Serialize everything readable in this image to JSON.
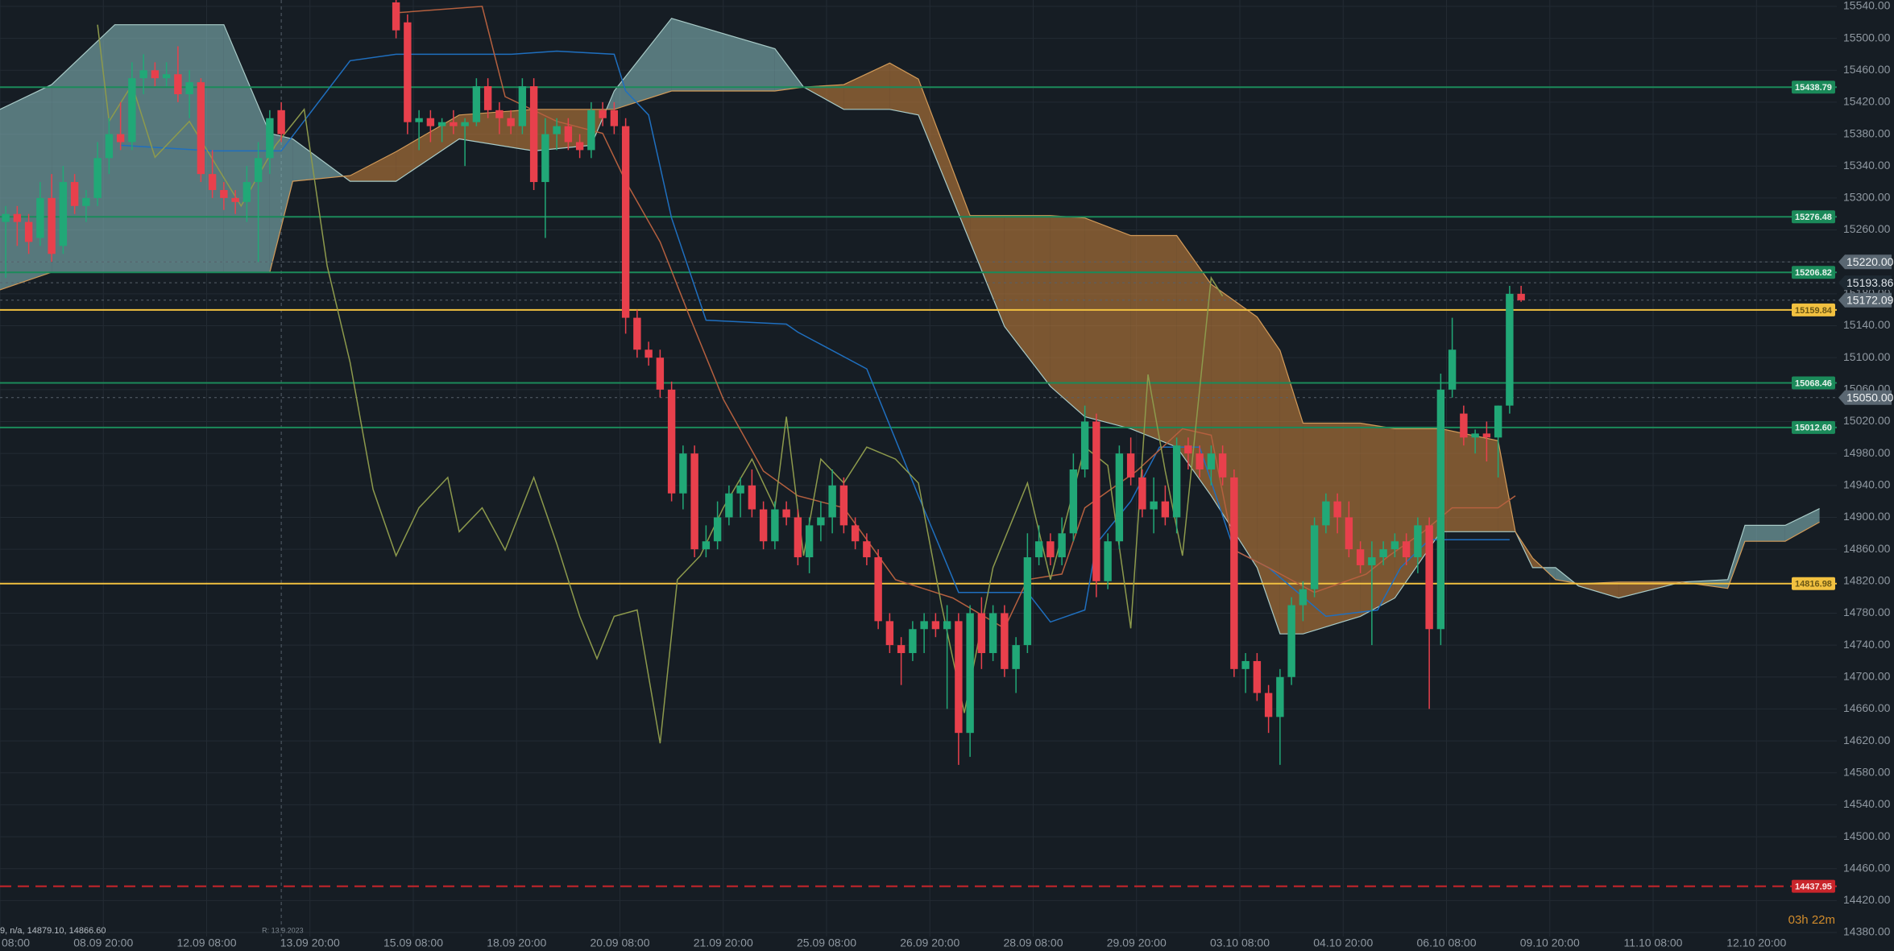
{
  "chart_data": {
    "type": "candlestick",
    "background": "#161d24",
    "grid_color": "#232b33",
    "xlim": [
      -0.5,
      159.5
    ],
    "ylim": [
      14375,
      15548
    ],
    "xticks": [
      {
        "value": -0.5,
        "label": "08:00"
      },
      {
        "value": 8.5,
        "label": "08.09 20:00"
      },
      {
        "value": 17.5,
        "label": "12.09 08:00"
      },
      {
        "value": 26.5,
        "label": "13.09 20:00"
      },
      {
        "value": 35.5,
        "label": "15.09 08:00"
      },
      {
        "value": 44.5,
        "label": "18.09 20:00"
      },
      {
        "value": 53.5,
        "label": "20.09 08:00"
      },
      {
        "value": 62.5,
        "label": "21.09 20:00"
      },
      {
        "value": 71.5,
        "label": "25.09 08:00"
      },
      {
        "value": 80.5,
        "label": "26.09 20:00"
      },
      {
        "value": 89.5,
        "label": "28.09 08:00"
      },
      {
        "value": 98.5,
        "label": "29.09 20:00"
      },
      {
        "value": 107.5,
        "label": "03.10 08:00"
      },
      {
        "value": 116.5,
        "label": "04.10 20:00"
      },
      {
        "value": 125.5,
        "label": "06.10 08:00"
      },
      {
        "value": 134.5,
        "label": "09.10 20:00"
      },
      {
        "value": 143.5,
        "label": "11.10 08:00"
      },
      {
        "value": 152.5,
        "label": "12.10 20:00"
      }
    ],
    "yticks": [
      {
        "value": 14380,
        "label": "14380.00"
      },
      {
        "value": 14420,
        "label": "14420.00"
      },
      {
        "value": 14460,
        "label": "14460.00"
      },
      {
        "value": 14500,
        "label": "14500.00"
      },
      {
        "value": 14540,
        "label": "14540.00"
      },
      {
        "value": 14580,
        "label": "14580.00"
      },
      {
        "value": 14620,
        "label": "14620.00"
      },
      {
        "value": 14660,
        "label": "14660.00"
      },
      {
        "value": 14700,
        "label": "14700.00"
      },
      {
        "value": 14740,
        "label": "14740.00"
      },
      {
        "value": 14780,
        "label": "14780.00"
      },
      {
        "value": 14820,
        "label": "14820.00"
      },
      {
        "value": 14860,
        "label": "14860.00"
      },
      {
        "value": 14900,
        "label": "14900.00"
      },
      {
        "value": 14940,
        "label": "14940.00"
      },
      {
        "value": 14980,
        "label": "14980.00"
      },
      {
        "value": 15020,
        "label": "15020.00"
      },
      {
        "value": 15060,
        "label": "15060.00"
      },
      {
        "value": 15100,
        "label": "15100.00"
      },
      {
        "value": 15140,
        "label": "15140.00"
      },
      {
        "value": 15180,
        "label": "15180.00"
      },
      {
        "value": 15220,
        "label": "15220.00"
      },
      {
        "value": 15260,
        "label": "15260.00"
      },
      {
        "value": 15300,
        "label": "15300.00"
      },
      {
        "value": 15340,
        "label": "15340.00"
      },
      {
        "value": 15380,
        "label": "15380.00"
      },
      {
        "value": 15420,
        "label": "15420.00"
      },
      {
        "value": 15460,
        "label": "15460.00"
      },
      {
        "value": 15500,
        "label": "15500.00"
      },
      {
        "value": 15540,
        "label": "15540.00"
      }
    ],
    "cloud": {
      "up_color": "#7fb0b3",
      "down_color": "#b9793a",
      "span_a_color": "#a9cbc8",
      "span_b_color": "#d29a58",
      "x": [
        -0.5,
        4,
        9.5,
        19,
        23,
        25,
        30,
        34,
        39.5,
        46,
        51,
        53,
        58,
        67,
        69.5,
        73,
        77,
        79.5,
        84,
        87,
        91,
        94,
        98,
        102,
        105,
        109,
        111,
        113,
        118,
        121,
        125,
        130,
        131.5,
        133,
        135,
        137,
        140.5,
        146,
        150,
        151.5,
        155,
        158
      ],
      "span_a": [
        15411,
        15442,
        15517,
        15517,
        15381,
        15374,
        15321,
        15321,
        15374,
        15359,
        15366,
        15434,
        15525,
        15487,
        15439,
        15411,
        15411,
        15404,
        15245,
        15139,
        15064,
        15026,
        15011,
        14988,
        14927,
        14837,
        14754,
        14754,
        14776,
        14799,
        14882,
        14882,
        14882,
        14837,
        14837,
        14814,
        14799,
        14819,
        14822,
        14890,
        14890,
        14911
      ],
      "span_b": [
        15185,
        15207,
        15207,
        15207,
        15207,
        15321,
        15328,
        15358,
        15404,
        15411,
        15411,
        15411,
        15434,
        15434,
        15439,
        15442,
        15469,
        15449,
        15278,
        15278,
        15278,
        15275,
        15253,
        15253,
        15192,
        15151,
        15109,
        15018,
        15018,
        15011,
        15011,
        14996,
        14882,
        14849,
        14822,
        14817,
        14819,
        14819,
        14811,
        14870,
        14870,
        14894
      ]
    },
    "lines": [
      {
        "color": "#1f6fbf",
        "x": [
          10,
          18,
          24,
          30,
          34,
          44,
          48,
          53,
          54,
          56,
          58,
          61,
          68,
          69,
          75,
          79.5,
          83,
          89,
          91,
          94,
          95,
          98,
          100.5,
          104,
          107,
          110,
          115,
          119.5,
          121.5,
          124,
          131
        ],
        "values": [
          15366,
          15359,
          15359,
          15472,
          15480,
          15480,
          15484,
          15480,
          15434,
          15404,
          15275,
          15147,
          15142,
          15132,
          15086,
          14927,
          14806,
          14806,
          14769,
          14784,
          14867,
          14920,
          14988,
          14988,
          14859,
          14837,
          14776,
          14784,
          14837,
          14872,
          14872
        ]
      },
      {
        "color": "#b5603f",
        "x": [
          34,
          41.5,
          43.5,
          48,
          52,
          54,
          57,
          59.5,
          62.5,
          66,
          69,
          73,
          77.5,
          82.5,
          87,
          89,
          92,
          94,
          98.5,
          102.5,
          105,
          107,
          110,
          114,
          118.5,
          120.5,
          123.5,
          126,
          130,
          131.5
        ],
        "values": [
          15532,
          15540,
          15427,
          15396,
          15381,
          15321,
          15245,
          15154,
          15048,
          14958,
          14927,
          14912,
          14822,
          14799,
          14761,
          14822,
          14829,
          14912,
          14958,
          15011,
          15003,
          14859,
          14837,
          14806,
          14829,
          14852,
          14882,
          14912,
          14912,
          14927
        ]
      },
      {
        "color": "#8d9a4c",
        "x": [
          8,
          9,
          11,
          13,
          16,
          20.5,
          23.5,
          26,
          28,
          30,
          32,
          34,
          36,
          38.5,
          39.5,
          41.5,
          43.5,
          46,
          48,
          50,
          51.5,
          53,
          55,
          57,
          58.5,
          60.5,
          62.5,
          65,
          67,
          68,
          69.5,
          71,
          73,
          75,
          77.5,
          79.5,
          81.5,
          83.5,
          86,
          89,
          91,
          94,
          96,
          98,
          99.5,
          101,
          102.5,
          105,
          106
        ],
        "values": [
          15517,
          15396,
          15442,
          15351,
          15396,
          15290,
          15366,
          15411,
          15215,
          15094,
          14935,
          14852,
          14912,
          14950,
          14882,
          14912,
          14859,
          14950,
          14867,
          14776,
          14723,
          14776,
          14784,
          14617,
          14822,
          14852,
          14912,
          14973,
          14912,
          15026,
          14852,
          14973,
          14943,
          14988,
          14973,
          14943,
          14791,
          14655,
          14837,
          14943,
          14822,
          14988,
          14965,
          14761,
          15079,
          14958,
          14852,
          15200,
          15177
        ]
      }
    ],
    "candles": {
      "up_color": "#21a877",
      "down_color": "#e8404c",
      "open": [
        15270,
        15280,
        15270,
        15250,
        15300,
        15240,
        15320,
        15290,
        15300,
        15350,
        15380,
        15370,
        15450,
        15460,
        15450,
        15455,
        15430,
        15445,
        15330,
        15310,
        15300,
        15295,
        15320,
        15350,
        15410,
        null,
        null,
        null,
        null,
        null,
        null,
        null,
        null,
        null,
        15545,
        15520,
        15395,
        15400,
        15390,
        15395,
        15390,
        15395,
        15440,
        15410,
        15400,
        15390,
        15440,
        15320,
        15380,
        15390,
        15370,
        15360,
        15410,
        15410,
        15390,
        15150,
        15110,
        15100,
        15060,
        14930,
        14980,
        14860,
        14870,
        14900,
        14930,
        14940,
        14910,
        14870,
        14910,
        14900,
        14850,
        14890,
        14900,
        14940,
        14890,
        14870,
        14850,
        14770,
        14740,
        14730,
        14760,
        14770,
        14760,
        14770,
        14630,
        14780,
        14730,
        14780,
        14710,
        14740,
        14850,
        14870,
        14850,
        14880,
        14960,
        15020,
        14820,
        14870,
        14980,
        14950,
        14910,
        14920,
        14900,
        14990,
        14980,
        14960,
        14980,
        14950,
        14710,
        14720,
        14680,
        14650,
        14700,
        14790,
        14810,
        14890,
        14920,
        14900,
        14860,
        14840,
        14850,
        14860,
        14870,
        14850,
        14890,
        14760,
        15060,
        15030,
        15000,
        15005,
        15000,
        15040,
        15180
      ],
      "high": [
        15290,
        15290,
        15280,
        15320,
        15330,
        15340,
        15330,
        15310,
        15370,
        15400,
        15420,
        15470,
        15480,
        15470,
        15470,
        15490,
        15460,
        15450,
        15360,
        15320,
        15310,
        15340,
        15370,
        15410,
        15420,
        null,
        null,
        null,
        null,
        null,
        null,
        null,
        null,
        null,
        15560,
        15530,
        15410,
        15410,
        15400,
        15410,
        15400,
        15450,
        15450,
        15420,
        15410,
        15450,
        15450,
        15400,
        15400,
        15400,
        15380,
        15420,
        15420,
        15420,
        15400,
        15160,
        15120,
        15110,
        15070,
        14990,
        14990,
        14890,
        14920,
        14940,
        14950,
        14960,
        14920,
        14920,
        14920,
        14910,
        14900,
        14920,
        14960,
        14950,
        14900,
        14880,
        14860,
        14780,
        14750,
        14770,
        14780,
        14780,
        14790,
        14780,
        14790,
        14800,
        14790,
        14790,
        14750,
        14880,
        14890,
        14880,
        14900,
        14980,
        15040,
        15030,
        14880,
        14990,
        15000,
        14960,
        14950,
        14940,
        15000,
        15000,
        14990,
        14990,
        14990,
        14960,
        14730,
        14730,
        14690,
        14710,
        14800,
        14820,
        14900,
        14930,
        14930,
        14920,
        14870,
        14870,
        14870,
        14880,
        14880,
        14900,
        14900,
        15080,
        15150,
        15040,
        15010,
        15020,
        15040,
        15190,
        15190
      ],
      "low": [
        15200,
        15240,
        15230,
        15240,
        15220,
        15230,
        15280,
        15270,
        15290,
        15330,
        15360,
        15360,
        15430,
        15440,
        15440,
        15420,
        15400,
        15320,
        15300,
        15285,
        15280,
        15270,
        15220,
        15330,
        15370,
        null,
        null,
        null,
        null,
        null,
        null,
        null,
        null,
        null,
        15500,
        15380,
        15360,
        15370,
        15370,
        15380,
        15340,
        15390,
        15400,
        15380,
        15380,
        15380,
        15310,
        15250,
        15360,
        15360,
        15350,
        15350,
        15390,
        15380,
        15130,
        15100,
        15090,
        15050,
        14920,
        14910,
        14850,
        14850,
        14860,
        14890,
        14900,
        14900,
        14860,
        14860,
        14890,
        14840,
        14830,
        14870,
        14880,
        14880,
        14860,
        14840,
        14760,
        14730,
        14690,
        14720,
        14730,
        14750,
        14660,
        14590,
        14600,
        14710,
        14720,
        14700,
        14680,
        14730,
        14840,
        14840,
        14840,
        14870,
        14950,
        14800,
        14810,
        14860,
        14940,
        14900,
        14880,
        14890,
        14880,
        14960,
        14950,
        14940,
        14940,
        14700,
        14680,
        14670,
        14630,
        14590,
        14690,
        14770,
        14800,
        14880,
        14880,
        14850,
        14830,
        14740,
        14840,
        14850,
        14840,
        14830,
        14660,
        14740,
        15050,
        14990,
        14980,
        14970,
        14950,
        15030,
        15170
      ],
      "close": [
        15280,
        15270,
        15245,
        15300,
        15230,
        15320,
        15290,
        15300,
        15350,
        15380,
        15370,
        15450,
        15460,
        15450,
        15455,
        15430,
        15445,
        15330,
        15310,
        15300,
        15295,
        15320,
        15350,
        15400,
        15380,
        null,
        null,
        null,
        null,
        null,
        null,
        null,
        null,
        null,
        15510,
        15395,
        15400,
        15390,
        15395,
        15390,
        15395,
        15440,
        15410,
        15400,
        15390,
        15440,
        15320,
        15380,
        15390,
        15370,
        15360,
        15410,
        15400,
        15390,
        15150,
        15110,
        15100,
        15060,
        14930,
        14980,
        14860,
        14870,
        14900,
        14930,
        14940,
        14910,
        14870,
        14910,
        14900,
        14850,
        14890,
        14900,
        14940,
        14890,
        14870,
        14850,
        14770,
        14740,
        14730,
        14760,
        14770,
        14760,
        14770,
        14630,
        14780,
        14730,
        14780,
        14710,
        14740,
        14850,
        14870,
        14850,
        14880,
        14960,
        15020,
        14820,
        14870,
        14980,
        14950,
        14910,
        14920,
        14900,
        14990,
        14980,
        14960,
        14980,
        14950,
        14710,
        14720,
        14680,
        14650,
        14700,
        14790,
        14810,
        14890,
        14920,
        14900,
        14860,
        14840,
        14850,
        14860,
        14870,
        14850,
        14890,
        14760,
        15060,
        15110,
        15000,
        15005,
        15000,
        15040,
        15180,
        15172
      ]
    },
    "levels": [
      {
        "value": 15438.79,
        "color": "#1b8a5a",
        "text_color": "#e6f3ec"
      },
      {
        "value": 15276.48,
        "color": "#1b8a5a",
        "text_color": "#e6f3ec"
      },
      {
        "value": 15206.82,
        "color": "#1b8a5a",
        "text_color": "#e6f3ec"
      },
      {
        "value": 15159.84,
        "color": "#f2c140",
        "text_color": "#6b5716"
      },
      {
        "value": 15068.46,
        "color": "#1b8a5a",
        "text_color": "#e6f3ec"
      },
      {
        "value": 15012.6,
        "label": "15012.60",
        "color": "#1b8a5a",
        "text_color": "#e6f3ec"
      },
      {
        "value": 14816.98,
        "color": "#f2c140",
        "text_color": "#6b5716"
      },
      {
        "value": 14437.95,
        "color": "#c9252b",
        "text_color": "#fbe6e6",
        "dashed": true
      }
    ],
    "markers": [
      {
        "value": 15220,
        "label": "15220.00",
        "color": "#5a6772",
        "text_color": "#eef1f3"
      },
      {
        "value": 15193.86,
        "color": "#1e2932",
        "text_color": "#dfe5ea"
      },
      {
        "value": 15172.09,
        "color": "#5a6772",
        "text_color": "#eef1f3"
      },
      {
        "value": 15050,
        "label": "15050.00",
        "color": "#5a6772",
        "text_color": "#eef1f3"
      }
    ],
    "vline": 24,
    "release_label": "R: 13.9.2023",
    "info": "9, n/a, 14879.10, 14866.60",
    "countdown": "03h 22m"
  }
}
